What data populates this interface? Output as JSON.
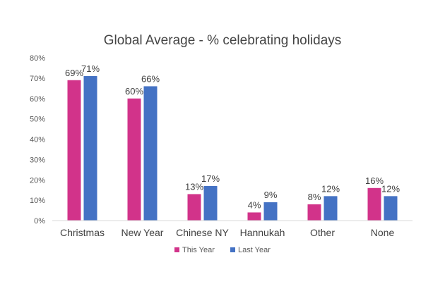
{
  "chart_data": {
    "type": "bar",
    "title": "Global Average - % celebrating holidays",
    "xlabel": "",
    "ylabel": "",
    "ylim": [
      0,
      80
    ],
    "yticks": [
      "0%",
      "10%",
      "20%",
      "30%",
      "40%",
      "50%",
      "60%",
      "70%",
      "80%"
    ],
    "grid": false,
    "legend": "bottom",
    "categories": [
      "Christmas",
      "New Year",
      "Chinese NY",
      "Hannukah",
      "Other",
      "None"
    ],
    "series": [
      {
        "name": "This Year",
        "color": "#D2338A",
        "values": [
          69,
          60,
          13,
          4,
          8,
          16
        ],
        "labels": [
          "69%",
          "60%",
          "13%",
          "4%",
          "8%",
          "16%"
        ]
      },
      {
        "name": "Last Year",
        "color": "#4472C4",
        "values": [
          71,
          66,
          17,
          9,
          12,
          12
        ],
        "labels": [
          "71%",
          "66%",
          "17%",
          "9%",
          "12%",
          "12%"
        ]
      }
    ]
  }
}
